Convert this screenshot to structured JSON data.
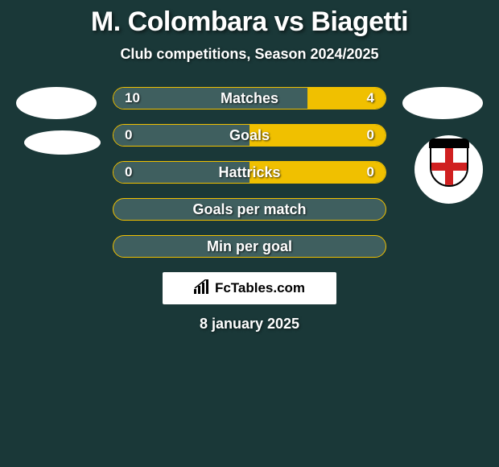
{
  "header": {
    "title": "M. Colombara vs Biagetti",
    "subtitle": "Club competitions, Season 2024/2025"
  },
  "colors": {
    "background": "#1a3838",
    "bar_left": "#3f5f5f",
    "bar_right": "#f0c000",
    "bar_border": "#f0c000",
    "text": "#ffffff",
    "branding_bg": "#ffffff",
    "branding_text": "#000000"
  },
  "stats": {
    "rows": [
      {
        "label": "Matches",
        "left": "10",
        "right": "4",
        "left_pct": 71.4,
        "right_pct": 28.6,
        "show_values": true
      },
      {
        "label": "Goals",
        "left": "0",
        "right": "0",
        "left_pct": 50,
        "right_pct": 50,
        "show_values": true
      },
      {
        "label": "Hattricks",
        "left": "0",
        "right": "0",
        "left_pct": 50,
        "right_pct": 50,
        "show_values": true
      },
      {
        "label": "Goals per match",
        "left": "",
        "right": "",
        "left_pct": 0,
        "right_pct": 0,
        "show_values": false
      },
      {
        "label": "Min per goal",
        "left": "",
        "right": "",
        "left_pct": 0,
        "right_pct": 0,
        "show_values": false
      }
    ]
  },
  "branding": {
    "text": "FcTables.com"
  },
  "footer": {
    "date": "8 january 2025"
  }
}
